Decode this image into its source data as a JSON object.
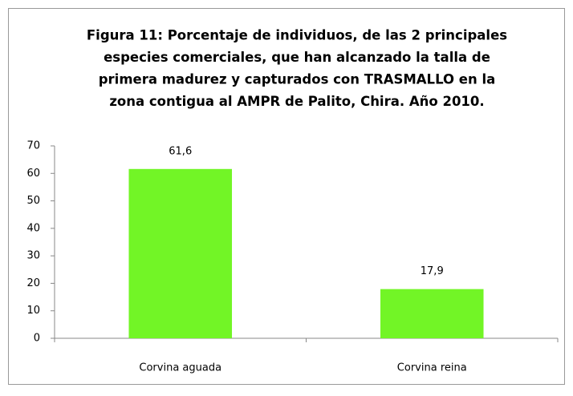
{
  "chart_data": {
    "type": "bar",
    "title": [
      "Figura 11: Porcentaje de individuos, de las 2 principales",
      "especies comerciales, que han alcanzado la talla de",
      "primera madurez y capturados con TRASMALLO en la",
      "zona contigua al AMPR de Palito, Chira.  Año 2010."
    ],
    "categories": [
      "Corvina aguada",
      "Corvina reina"
    ],
    "values": [
      61.6,
      17.9
    ],
    "value_labels": [
      "61,6",
      "17,9"
    ],
    "color": "#72f526",
    "ylim": [
      0,
      70
    ],
    "yticks": [
      0,
      10,
      20,
      30,
      40,
      50,
      60,
      70
    ],
    "grid": false
  }
}
